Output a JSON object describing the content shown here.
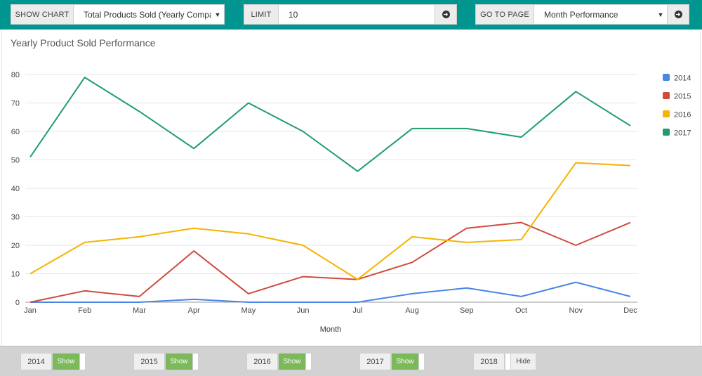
{
  "toolbar": {
    "show_chart_label": "SHOW CHART",
    "chart_select_value": "Total Products Sold (Yearly Comparis",
    "limit_label": "LIMIT",
    "limit_value": "10",
    "goto_label": "GO TO PAGE",
    "goto_select_value": "Month Performance"
  },
  "colors": {
    "toolbar_bg": "#00968f",
    "on": "#7cb95b"
  },
  "chart_data": {
    "type": "line",
    "title": "Yearly Product Sold Performance",
    "xlabel": "Month",
    "ylabel": "",
    "ylim": [
      0,
      80
    ],
    "yticks": [
      0,
      10,
      20,
      30,
      40,
      50,
      60,
      70,
      80
    ],
    "categories": [
      "Jan",
      "Feb",
      "Mar",
      "Apr",
      "May",
      "Jun",
      "Jul",
      "Aug",
      "Sep",
      "Oct",
      "Nov",
      "Dec"
    ],
    "grid": true,
    "legend_position": "right",
    "series": [
      {
        "name": "2014",
        "color": "#4a86e8",
        "values": [
          0,
          0,
          0,
          1,
          0,
          0,
          0,
          3,
          5,
          2,
          7,
          2
        ]
      },
      {
        "name": "2015",
        "color": "#d14a3c",
        "values": [
          0,
          4,
          2,
          18,
          3,
          9,
          8,
          14,
          26,
          28,
          20,
          28
        ]
      },
      {
        "name": "2016",
        "color": "#f4b400",
        "values": [
          10,
          21,
          23,
          26,
          24,
          20,
          8,
          23,
          21,
          22,
          49,
          48
        ]
      },
      {
        "name": "2017",
        "color": "#1e9e6a",
        "values": [
          51,
          79,
          67,
          54,
          70,
          60,
          46,
          61,
          61,
          58,
          74,
          62
        ]
      }
    ]
  },
  "footer": {
    "years": [
      {
        "year": "2014",
        "toggle": "Show",
        "on": true
      },
      {
        "year": "2015",
        "toggle": "Show",
        "on": true
      },
      {
        "year": "2016",
        "toggle": "Show",
        "on": true
      },
      {
        "year": "2017",
        "toggle": "Show",
        "on": true
      },
      {
        "year": "2018",
        "toggle": "Hide",
        "on": false
      }
    ]
  }
}
